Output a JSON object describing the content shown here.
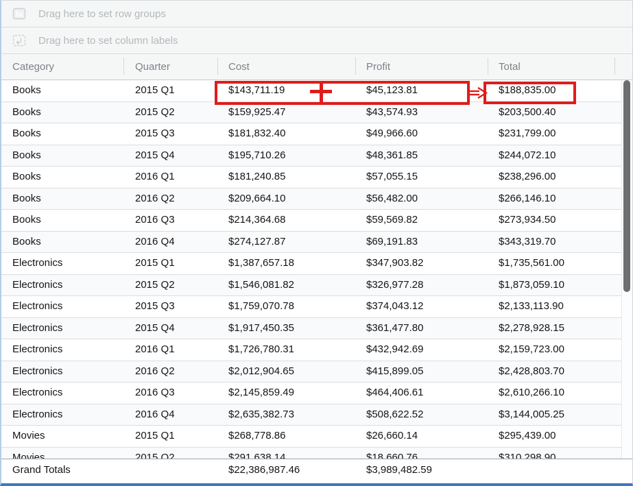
{
  "dropzones": {
    "row_groups_label": "Drag here to set row groups",
    "column_labels_label": "Drag here to set column labels"
  },
  "columns": [
    {
      "key": "category",
      "label": "Category"
    },
    {
      "key": "quarter",
      "label": "Quarter"
    },
    {
      "key": "cost",
      "label": "Cost"
    },
    {
      "key": "profit",
      "label": "Profit"
    },
    {
      "key": "total",
      "label": "Total"
    }
  ],
  "rows": [
    {
      "category": "Books",
      "quarter": "2015 Q1",
      "cost": "$143,711.19",
      "profit": "$45,123.81",
      "total": "$188,835.00"
    },
    {
      "category": "Books",
      "quarter": "2015 Q2",
      "cost": "$159,925.47",
      "profit": "$43,574.93",
      "total": "$203,500.40"
    },
    {
      "category": "Books",
      "quarter": "2015 Q3",
      "cost": "$181,832.40",
      "profit": "$49,966.60",
      "total": "$231,799.00"
    },
    {
      "category": "Books",
      "quarter": "2015 Q4",
      "cost": "$195,710.26",
      "profit": "$48,361.85",
      "total": "$244,072.10"
    },
    {
      "category": "Books",
      "quarter": "2016 Q1",
      "cost": "$181,240.85",
      "profit": "$57,055.15",
      "total": "$238,296.00"
    },
    {
      "category": "Books",
      "quarter": "2016 Q2",
      "cost": "$209,664.10",
      "profit": "$56,482.00",
      "total": "$266,146.10"
    },
    {
      "category": "Books",
      "quarter": "2016 Q3",
      "cost": "$214,364.68",
      "profit": "$59,569.82",
      "total": "$273,934.50"
    },
    {
      "category": "Books",
      "quarter": "2016 Q4",
      "cost": "$274,127.87",
      "profit": "$69,191.83",
      "total": "$343,319.70"
    },
    {
      "category": "Electronics",
      "quarter": "2015 Q1",
      "cost": "$1,387,657.18",
      "profit": "$347,903.82",
      "total": "$1,735,561.00"
    },
    {
      "category": "Electronics",
      "quarter": "2015 Q2",
      "cost": "$1,546,081.82",
      "profit": "$326,977.28",
      "total": "$1,873,059.10"
    },
    {
      "category": "Electronics",
      "quarter": "2015 Q3",
      "cost": "$1,759,070.78",
      "profit": "$374,043.12",
      "total": "$2,133,113.90"
    },
    {
      "category": "Electronics",
      "quarter": "2015 Q4",
      "cost": "$1,917,450.35",
      "profit": "$361,477.80",
      "total": "$2,278,928.15"
    },
    {
      "category": "Electronics",
      "quarter": "2016 Q1",
      "cost": "$1,726,780.31",
      "profit": "$432,942.69",
      "total": "$2,159,723.00"
    },
    {
      "category": "Electronics",
      "quarter": "2016 Q2",
      "cost": "$2,012,904.65",
      "profit": "$415,899.05",
      "total": "$2,428,803.70"
    },
    {
      "category": "Electronics",
      "quarter": "2016 Q3",
      "cost": "$2,145,859.49",
      "profit": "$464,406.61",
      "total": "$2,610,266.10"
    },
    {
      "category": "Electronics",
      "quarter": "2016 Q4",
      "cost": "$2,635,382.73",
      "profit": "$508,622.52",
      "total": "$3,144,005.25"
    },
    {
      "category": "Movies",
      "quarter": "2015 Q1",
      "cost": "$268,778.86",
      "profit": "$26,660.14",
      "total": "$295,439.00"
    },
    {
      "category": "Movies",
      "quarter": "2015 Q2",
      "cost": "$291,638.14",
      "profit": "$18,660.76",
      "total": "$310,298.90"
    }
  ],
  "pinned_row": {
    "category": "Grand Totals",
    "quarter": "",
    "cost": "$22,386,987.46",
    "profit": "$3,989,482.59",
    "total": ""
  },
  "annotation": {
    "description": "red box around Cost plus Profit of first row, arrow to boxed Total",
    "color": "#e01b1b"
  },
  "colors": {
    "panel_bg": "#f5f7f7",
    "bottom_accent_border": "#3e7abd",
    "annotation_red": "#e01b1b",
    "scrollbar_thumb": "#6e6e6e",
    "row_stripe": "#f8fafc"
  }
}
